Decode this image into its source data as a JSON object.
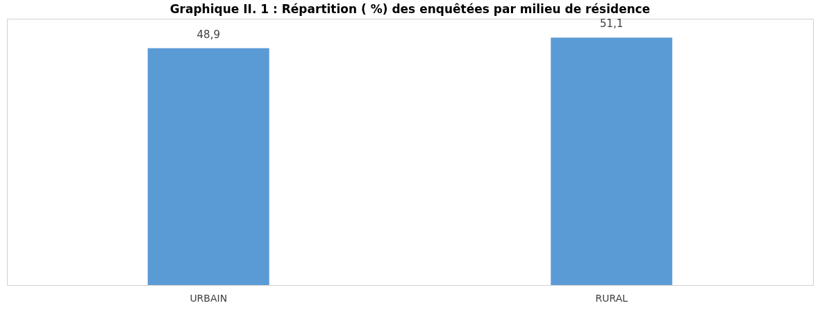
{
  "chart_data": {
    "type": "bar",
    "title": "Graphique II. 1 : Répartition ( %) des enquêtées par milieu de résidence",
    "categories": [
      "URBAIN",
      "RURAL"
    ],
    "values": [
      48.9,
      51.1
    ],
    "value_labels": [
      "48,9",
      "51,1"
    ],
    "color": "#5b9bd5"
  }
}
